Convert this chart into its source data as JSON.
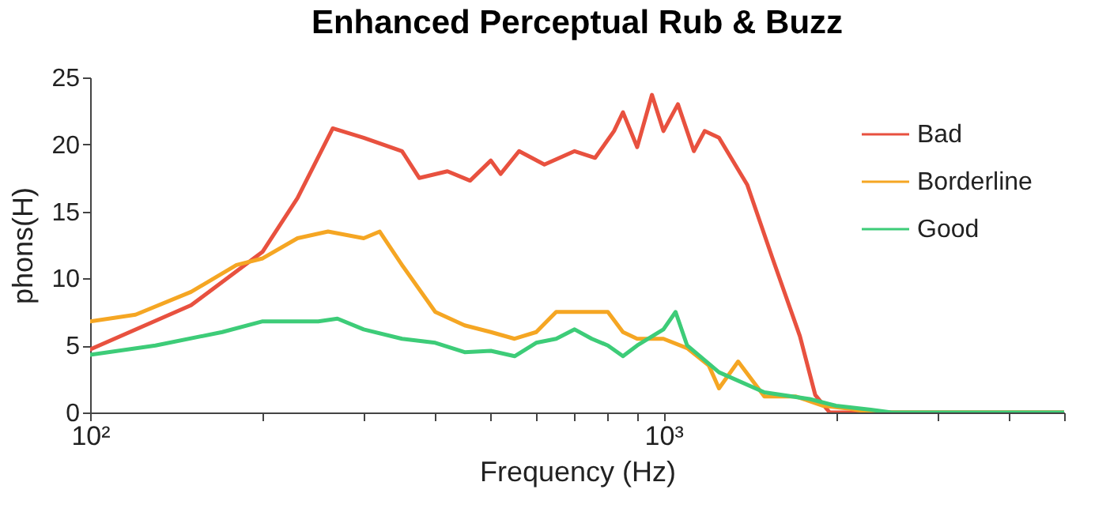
{
  "chart_data": {
    "type": "line",
    "title": "Enhanced Perceptual Rub & Buzz",
    "xlabel": "Frequency (Hz)",
    "ylabel": "phons(H)",
    "log": "x",
    "xlim": [
      100,
      5000
    ],
    "xticks": [
      {
        "value": 100,
        "label": "10²"
      },
      {
        "value": 200,
        "label": null
      },
      {
        "value": 300,
        "label": null
      },
      {
        "value": 400,
        "label": null
      },
      {
        "value": 500,
        "label": null
      },
      {
        "value": 600,
        "label": null
      },
      {
        "value": 700,
        "label": null
      },
      {
        "value": 800,
        "label": null
      },
      {
        "value": 900,
        "label": null
      },
      {
        "value": 1000,
        "label": "10³"
      },
      {
        "value": 2000,
        "label": null
      },
      {
        "value": 3000,
        "label": null
      },
      {
        "value": 4000,
        "label": null
      },
      {
        "value": 5000,
        "label": null
      }
    ],
    "ylim": [
      0,
      25
    ],
    "yticks": [
      0,
      5,
      10,
      15,
      20,
      25
    ],
    "grid": false,
    "legend": "top right",
    "marker": "none",
    "line_style": "solid",
    "series": [
      {
        "name": "Bad",
        "color": "#e8513f",
        "x": [
          100,
          150,
          200,
          230,
          265,
          300,
          350,
          375,
          420,
          460,
          500,
          520,
          560,
          620,
          700,
          760,
          820,
          850,
          900,
          955,
          1000,
          1060,
          1130,
          1180,
          1250,
          1400,
          1550,
          1730,
          1840,
          1950,
          2200,
          5000
        ],
        "values": [
          4.7,
          8,
          12,
          16,
          21.2,
          20.5,
          19.5,
          17.5,
          18,
          17.3,
          18.8,
          17.8,
          19.5,
          18.5,
          19.5,
          19,
          21,
          22.4,
          19.8,
          23.7,
          21,
          23,
          19.5,
          21,
          20.5,
          17,
          11.5,
          5.7,
          1.3,
          0,
          0,
          0
        ]
      },
      {
        "name": "Borderline",
        "color": "#f5a623",
        "x": [
          100,
          120,
          150,
          180,
          200,
          230,
          260,
          300,
          320,
          350,
          400,
          450,
          500,
          550,
          600,
          650,
          700,
          800,
          850,
          900,
          1000,
          1100,
          1200,
          1250,
          1350,
          1500,
          1700,
          1900,
          2100,
          2300,
          5000
        ],
        "values": [
          6.8,
          7.3,
          9,
          11,
          11.5,
          13,
          13.5,
          13,
          13.5,
          11,
          7.5,
          6.5,
          6,
          5.5,
          6,
          7.5,
          7.5,
          7.5,
          6,
          5.5,
          5.5,
          4.8,
          3.5,
          1.8,
          3.8,
          1.2,
          1.2,
          0.5,
          0.3,
          0,
          0
        ]
      },
      {
        "name": "Good",
        "color": "#3dcc78",
        "x": [
          100,
          130,
          170,
          200,
          250,
          270,
          300,
          350,
          400,
          450,
          500,
          550,
          600,
          650,
          700,
          750,
          800,
          850,
          900,
          1000,
          1050,
          1100,
          1250,
          1500,
          1800,
          2000,
          2300,
          2500,
          5000
        ],
        "values": [
          4.3,
          5,
          6,
          6.8,
          6.8,
          7,
          6.2,
          5.5,
          5.2,
          4.5,
          4.6,
          4.2,
          5.2,
          5.5,
          6.2,
          5.5,
          5,
          4.2,
          5,
          6.2,
          7.5,
          5,
          3,
          1.5,
          1,
          0.5,
          0.2,
          0,
          0
        ]
      }
    ]
  }
}
